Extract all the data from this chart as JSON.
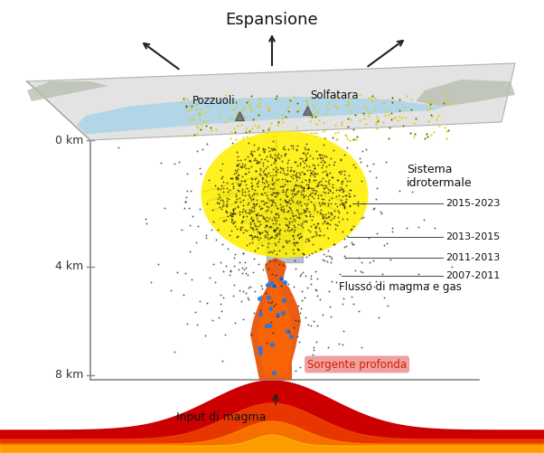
{
  "title": "Espansione",
  "labels": {
    "pozzuoli": "Pozzuoli",
    "solfatara": "Solfatara",
    "sistema_idrotermale": "Sistema\nidrotermale",
    "flusso": "Flusso di magma e gas",
    "sorgente": "Sorgente profonda",
    "input_magma": "Input di magma",
    "y_0km": "0 km",
    "y_4km": "4 km",
    "y_8km": "8 km",
    "period1": "2015-2023",
    "period2": "2013-2015",
    "period3": "2011-2013",
    "period4": "2007-2011"
  },
  "colors": {
    "background": "#ffffff",
    "plate_fill": "#e0e0e0",
    "plate_edge": "#aaaaaa",
    "water": "#aad4e8",
    "land_gray": "#b8b8b8",
    "yellow_hydrothermal": "#ffee00",
    "dark_seismic": "#111111",
    "sorgente_bg": "#f0a0a0",
    "sorgente_text": "#cc2200",
    "magma_red": "#cc0000",
    "magma_orange": "#ff5500",
    "magma_bright": "#ff9900",
    "blue_dikes": "#5585b5",
    "gray_dikes": "#8898a8",
    "blue_dots": "#2277ee",
    "axis_line": "#888888",
    "arrow_color": "#222222",
    "text_color": "#111111"
  }
}
